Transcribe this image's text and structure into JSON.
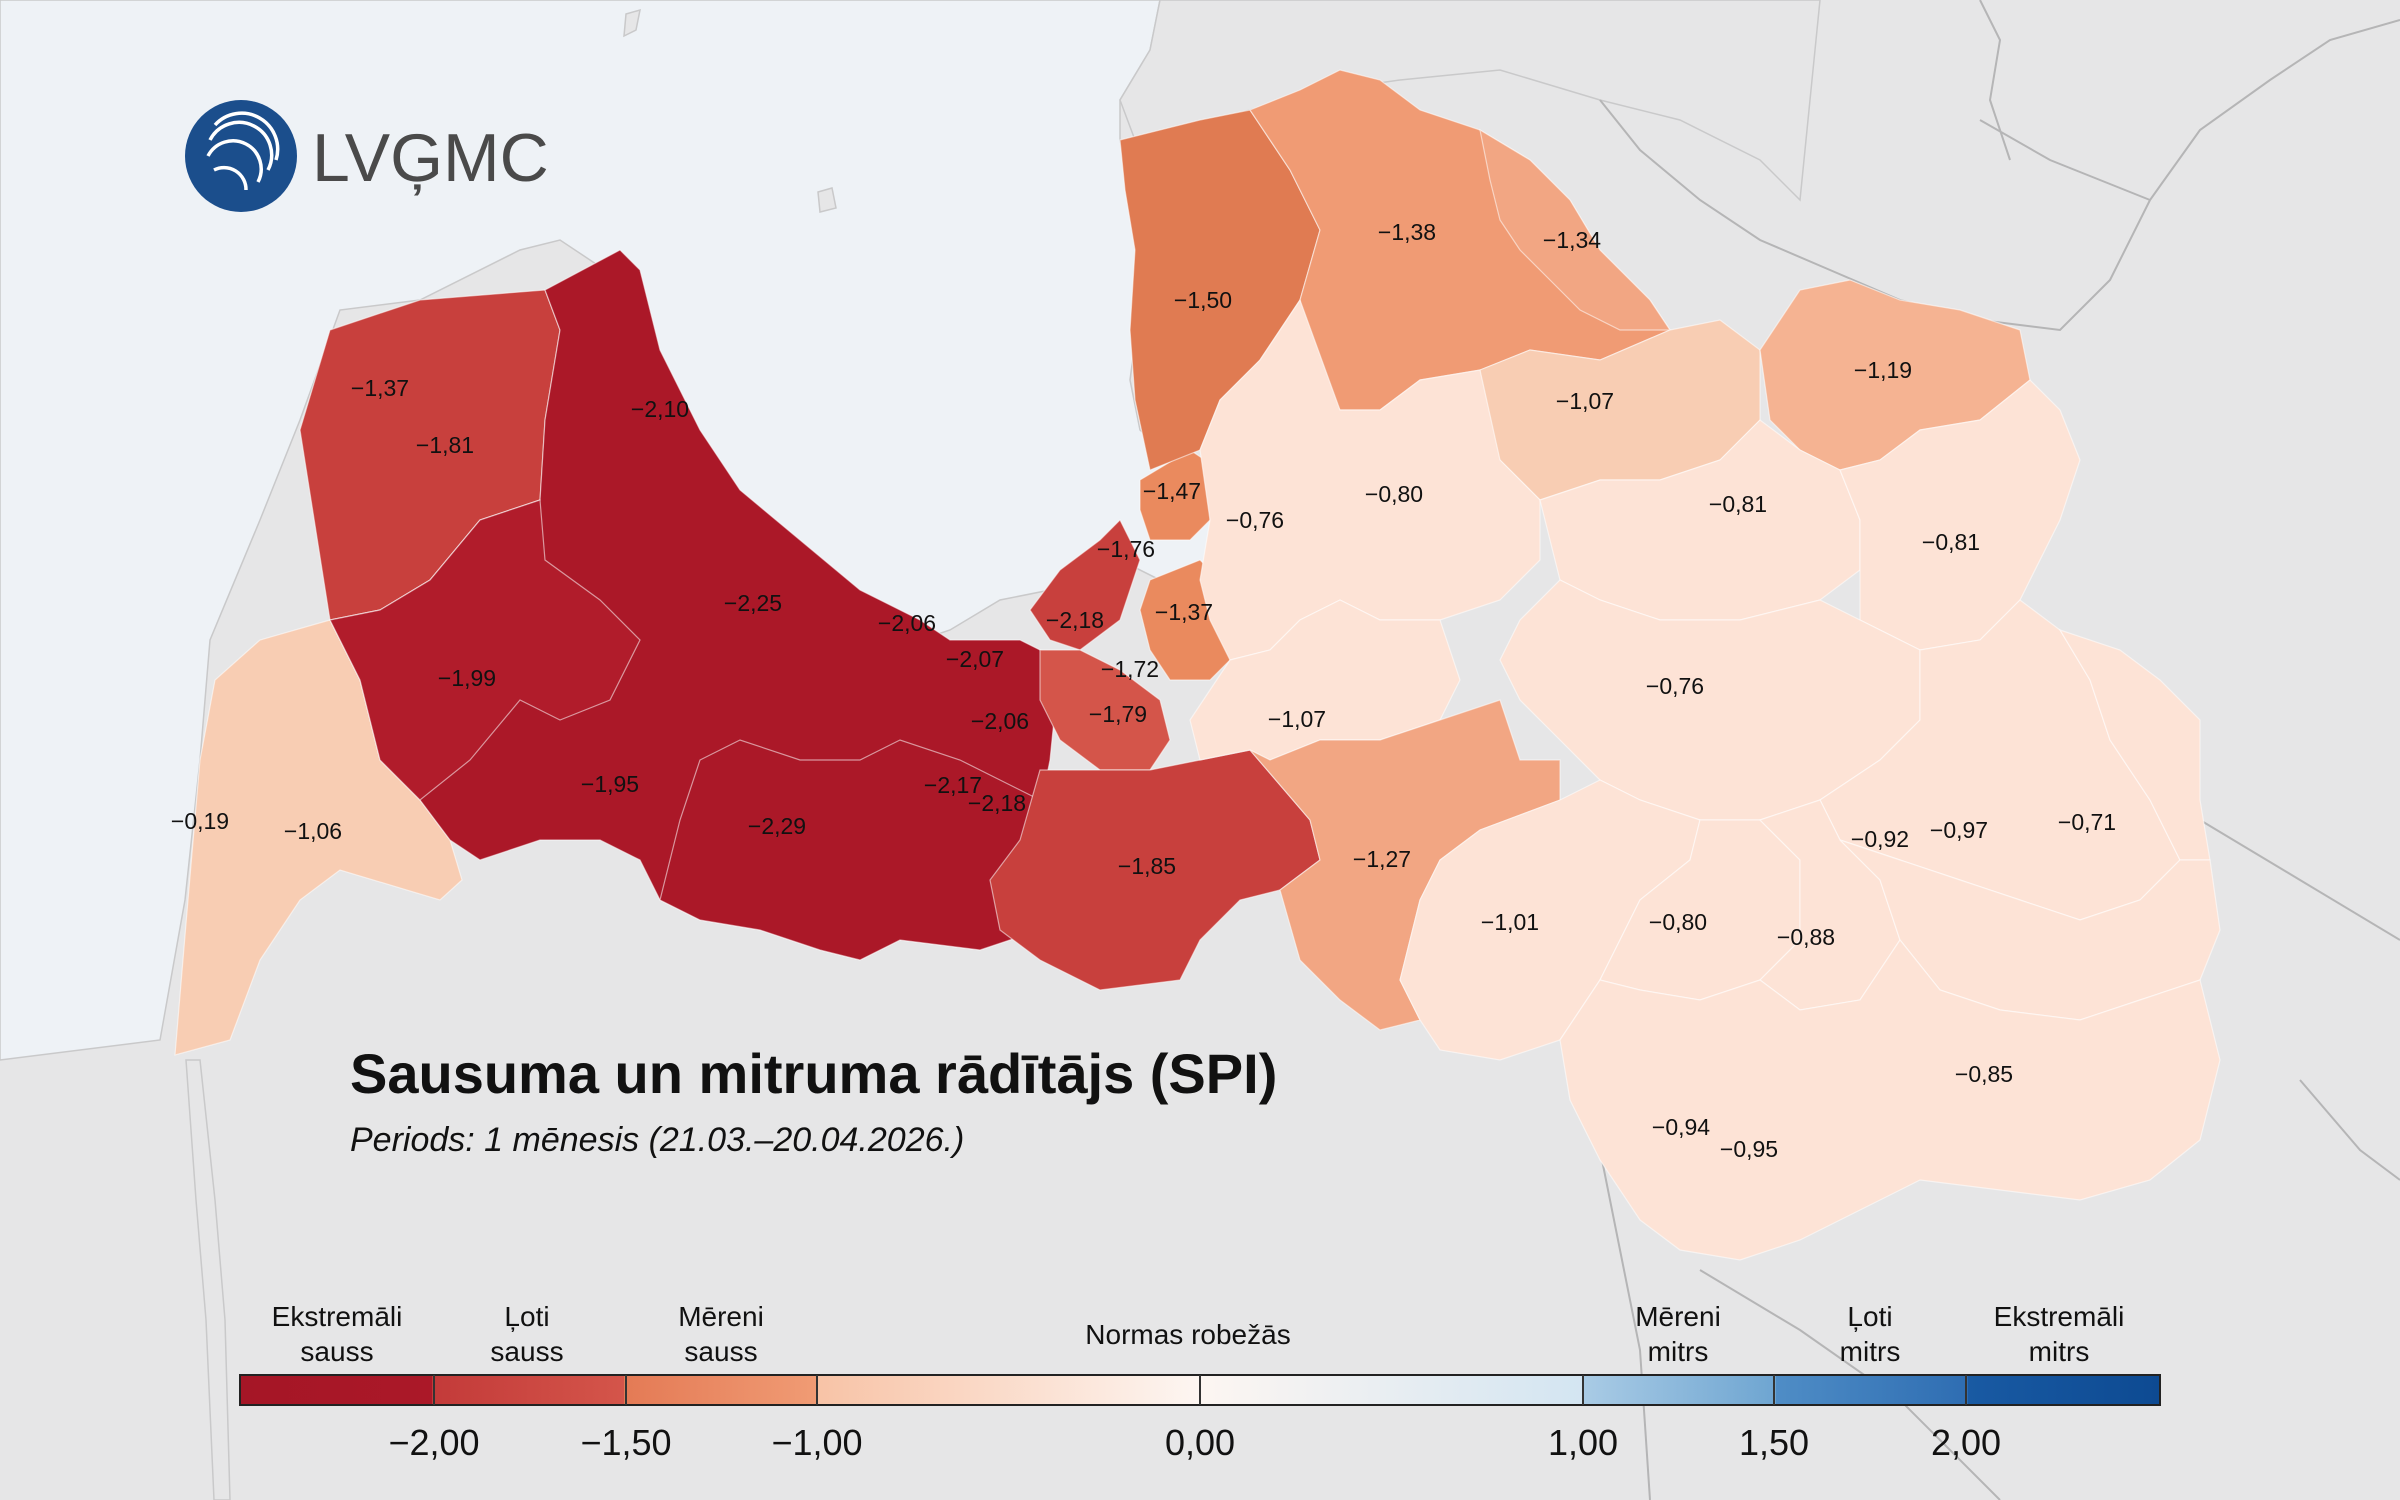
{
  "logo": {
    "text": "LVĢMC"
  },
  "title": "Sausuma un mitruma rādītājs (SPI)",
  "subtitle": "Periods: 1 mēnesis (21.03.–20.04.2026.)",
  "legend": {
    "categories": [
      {
        "line1": "Ekstremāli",
        "line2": "sauss"
      },
      {
        "line1": "Ļoti",
        "line2": "sauss"
      },
      {
        "line1": "Mēreni",
        "line2": "sauss"
      },
      {
        "line1": "Normas robežās",
        "line2": ""
      },
      {
        "line1": "Mēreni",
        "line2": "mitrs"
      },
      {
        "line1": "Ļoti",
        "line2": "mitrs"
      },
      {
        "line1": "Ekstremāli",
        "line2": "mitrs"
      }
    ],
    "ticks": [
      "−2,00",
      "−1,50",
      "−1,00",
      "0,00",
      "1,00",
      "1,50",
      "2,00"
    ],
    "colors": {
      "extreme_dry": "#ab1828",
      "very_dry": "#c8403d",
      "moderately_dry": "#ea8a5e",
      "normal_dry_end": "#f8c3a6",
      "normal_mid": "#fdf6f2",
      "normal_wet_end": "#d3e5f2",
      "moderately_wet": "#7fb0d6",
      "very_wet": "#3f80bd",
      "extreme_wet": "#0d4a92"
    }
  },
  "map_values": [
    "−0,19",
    "−1,06",
    "−1,37",
    "−1,81",
    "−2,10",
    "−1,99",
    "−2,25",
    "−1,95",
    "−2,29",
    "−2,06",
    "−2,07",
    "−2,18",
    "−2,06",
    "−2,17",
    "−2,18",
    "−1,76",
    "−1,47",
    "−1,37",
    "−1,72",
    "−1,79",
    "−1,85",
    "−1,50",
    "−1,38",
    "−1,34",
    "−1,07",
    "−1,19",
    "−0,80",
    "−0,76",
    "−0,81",
    "−0,81",
    "−0,76",
    "−1,07",
    "−1,27",
    "−1,01",
    "−0,80",
    "−0,88",
    "−0,92",
    "−0,97",
    "−0,71",
    "−0,85",
    "−0,94",
    "−0,95"
  ]
}
